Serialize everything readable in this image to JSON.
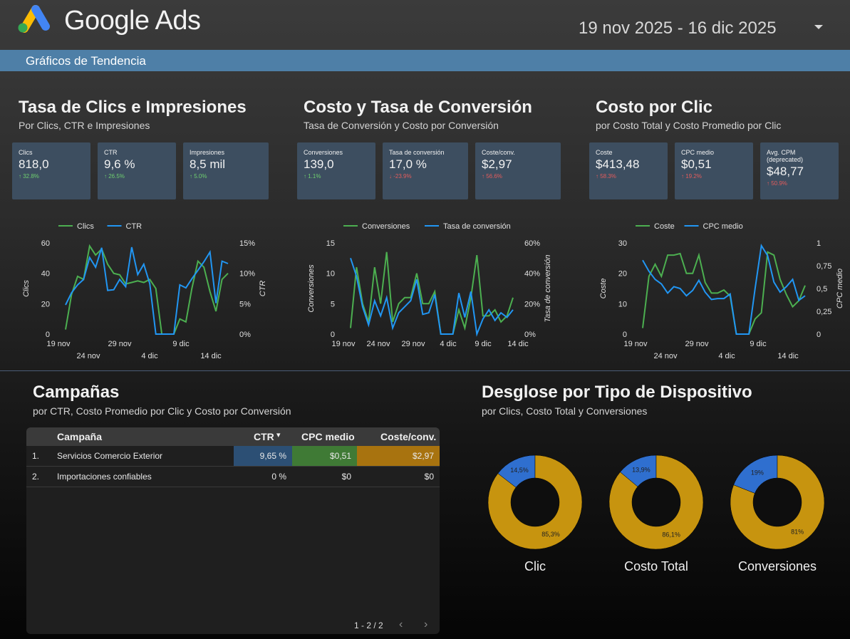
{
  "header": {
    "brand": "Google Ads",
    "date_range": "19 nov 2025 - 16 dic 2025",
    "colors": {
      "blue": "#4285F4",
      "yellow": "#FBBC04",
      "green": "#34A853"
    }
  },
  "subbar": {
    "title": "Gráficos de Tendencia"
  },
  "sections": {
    "clicks": {
      "title": "Tasa de Clics e Impresiones",
      "subtitle": "Por Clics, CTR e Impresiones"
    },
    "cost": {
      "title": "Costo y Tasa de Conversión",
      "subtitle": "Tasa de Conversión y Costo por Conversión"
    },
    "cpc": {
      "title": "Costo por Clic",
      "subtitle": "por Costo Total y Costo Promedio por Clic"
    },
    "campaigns": {
      "title": "Campañas",
      "subtitle": "por CTR, Costo Promedio por Clic y Costo por Conversión"
    },
    "devices": {
      "title": "Desglose por Tipo de Dispositivo",
      "subtitle": "por Clics, Costo Total y Conversiones"
    }
  },
  "kpis": [
    {
      "label": "Clics",
      "value": "818,0",
      "delta": "↑ 32.8%",
      "trend": "up"
    },
    {
      "label": "CTR",
      "value": "9,6 %",
      "delta": "↑ 26.5%",
      "trend": "up"
    },
    {
      "label": "Impresiones",
      "value": "8,5 mil",
      "delta": "↑ 5.0%",
      "trend": "up"
    },
    {
      "label": "Conversiones",
      "value": "139,0",
      "delta": "↑ 1.1%",
      "trend": "up"
    },
    {
      "label": "Tasa de conversión",
      "value": "17,0 %",
      "delta": "↓ -23.9%",
      "trend": "down"
    },
    {
      "label": "Coste/conv.",
      "value": "$2,97",
      "delta": "↑ 56.6%",
      "trend": "down"
    },
    {
      "label": "Coste",
      "value": "$413,48",
      "delta": "↑ 58.3%",
      "trend": "down"
    },
    {
      "label": "CPC medio",
      "value": "$0,51",
      "delta": "↑ 19.2%",
      "trend": "down"
    },
    {
      "label": "Avg. CPM (deprecated)",
      "value": "$48,77",
      "delta": "↑ 50.9%",
      "trend": "down"
    }
  ],
  "chart_data": [
    {
      "type": "line",
      "x_ticks_top": [
        "19 nov",
        "29 nov",
        "9 dic"
      ],
      "x_ticks_bottom": [
        "24 nov",
        "4 dic",
        "14 dic"
      ],
      "ylabel_left": "Clics",
      "ylabel_right": "CTR",
      "left_ticks": [
        "0",
        "20",
        "40",
        "60"
      ],
      "right_ticks": [
        "0%",
        "5%",
        "10%",
        "15%"
      ],
      "ylim_left": [
        0,
        60
      ],
      "ylim_right": [
        0,
        15
      ],
      "grid": false,
      "legend": "top",
      "series": [
        {
          "name": "Clics",
          "color": "#4caf50",
          "axis": "left",
          "values": [
            3,
            26,
            38,
            36,
            58,
            52,
            56,
            46,
            40,
            39,
            33,
            34,
            35,
            34,
            36,
            30,
            0,
            0,
            0,
            10,
            8,
            30,
            48,
            44,
            28,
            15,
            36,
            40
          ]
        },
        {
          "name": "CTR",
          "color": "#2196f3",
          "axis": "right",
          "values": [
            4.8,
            6.8,
            8.1,
            9.0,
            12.6,
            11.0,
            14.2,
            7.2,
            7.3,
            9.0,
            7.8,
            14.3,
            9.8,
            11.5,
            8.3,
            0,
            0,
            0,
            0,
            8.1,
            7.6,
            9.1,
            10.5,
            11.9,
            13.5,
            5.1,
            12.0,
            11.6
          ]
        }
      ]
    },
    {
      "type": "line",
      "x_ticks_top": [
        "19 nov",
        "29 nov",
        "9 dic"
      ],
      "x_ticks_bottom": [
        "24 nov",
        "4 dic",
        "14 dic"
      ],
      "x_ticks_all": [
        "19 nov",
        "24 nov",
        "29 nov",
        "4 dic",
        "9 dic",
        "14 dic"
      ],
      "ylabel_left": "Conversiones",
      "ylabel_right": "Tasa de conversión",
      "left_ticks": [
        "0",
        "5",
        "10",
        "15"
      ],
      "right_ticks": [
        "0%",
        "20%",
        "40%",
        "60%"
      ],
      "ylim_left": [
        0,
        15
      ],
      "ylim_right": [
        0,
        60
      ],
      "grid": false,
      "legend": "top",
      "series": [
        {
          "name": "Conversiones",
          "color": "#4caf50",
          "axis": "left",
          "values": [
            1,
            11,
            5,
            2,
            11,
            5,
            13.5,
            2,
            5,
            6,
            6,
            10,
            5,
            5,
            7,
            0,
            0,
            0,
            4,
            1,
            6,
            13,
            3,
            3,
            4,
            2,
            3,
            6
          ]
        },
        {
          "name": "Tasa de conversión",
          "color": "#2196f3",
          "axis": "right",
          "values": [
            50,
            38,
            18,
            6,
            22,
            12,
            24,
            4,
            14,
            18,
            22,
            36,
            13,
            14,
            26,
            0,
            0,
            0,
            27,
            11,
            28,
            0,
            10,
            16,
            9,
            14,
            11,
            16
          ]
        }
      ]
    },
    {
      "type": "line",
      "x_ticks_top": [
        "19 nov",
        "29 nov",
        "9 dic"
      ],
      "x_ticks_bottom": [
        "24 nov",
        "4 dic",
        "14 dic"
      ],
      "ylabel_left": "Coste",
      "ylabel_right": "CPC medio",
      "left_ticks": [
        "0",
        "10",
        "20",
        "30"
      ],
      "right_ticks": [
        "0",
        "0,25",
        "0,5",
        "0,75",
        "1"
      ],
      "ylim_left": [
        0,
        30
      ],
      "ylim_right": [
        0,
        1
      ],
      "grid": false,
      "legend": "top",
      "series": [
        {
          "name": "Coste",
          "color": "#4caf50",
          "axis": "left",
          "values": [
            2,
            19,
            23,
            19,
            26,
            26,
            26.5,
            20,
            20,
            26,
            17,
            13.5,
            13.5,
            14.5,
            12.5,
            0,
            0,
            0,
            5,
            7,
            27,
            26,
            18,
            13,
            9,
            11,
            16
          ]
        },
        {
          "name": "CPC medio",
          "color": "#2196f3",
          "axis": "right",
          "values": [
            0.81,
            0.69,
            0.6,
            0.55,
            0.45,
            0.52,
            0.5,
            0.42,
            0.48,
            0.59,
            0.46,
            0.38,
            0.39,
            0.39,
            0.44,
            0,
            0,
            0,
            0.5,
            0.97,
            0.86,
            0.57,
            0.46,
            0.52,
            0.6,
            0.37,
            0.42
          ]
        }
      ]
    },
    {
      "type": "pie",
      "title": "Clic",
      "donut": true,
      "slices": [
        {
          "label": "85,3%",
          "value": 85.3,
          "color": "#c7940f"
        },
        {
          "label": "14,5%",
          "value": 14.5,
          "color": "#2f6fcf"
        }
      ]
    },
    {
      "type": "pie",
      "title": "Costo Total",
      "donut": true,
      "slices": [
        {
          "label": "86,1%",
          "value": 86.1,
          "color": "#c7940f"
        },
        {
          "label": "13,9%",
          "value": 13.9,
          "color": "#2f6fcf"
        }
      ]
    },
    {
      "type": "pie",
      "title": "Conversiones",
      "donut": true,
      "slices": [
        {
          "label": "81%",
          "value": 81,
          "color": "#c7940f"
        },
        {
          "label": "19%",
          "value": 19,
          "color": "#2f6fcf"
        }
      ]
    }
  ],
  "table": {
    "headers": [
      "Campaña",
      "CTR",
      "CPC medio",
      "Coste/conv."
    ],
    "sort_indicator": "▾",
    "rows": [
      {
        "idx": "1.",
        "name": "Servicios Comercio Exterior",
        "ctr": "9,65 %",
        "cpc": "$0,51",
        "cost_conv": "$2,97"
      },
      {
        "idx": "2.",
        "name": "Importaciones confiables",
        "ctr": "0 %",
        "cpc": "$0",
        "cost_conv": "$0"
      }
    ],
    "pager": "1 - 2 / 2",
    "heat_colors": {
      "ctr": "#2c4f74",
      "cpc": "#3f7a35",
      "cost": "#a8730f"
    }
  },
  "devices": {
    "labels": [
      "Clic",
      "Costo Total",
      "Conversiones"
    ]
  }
}
